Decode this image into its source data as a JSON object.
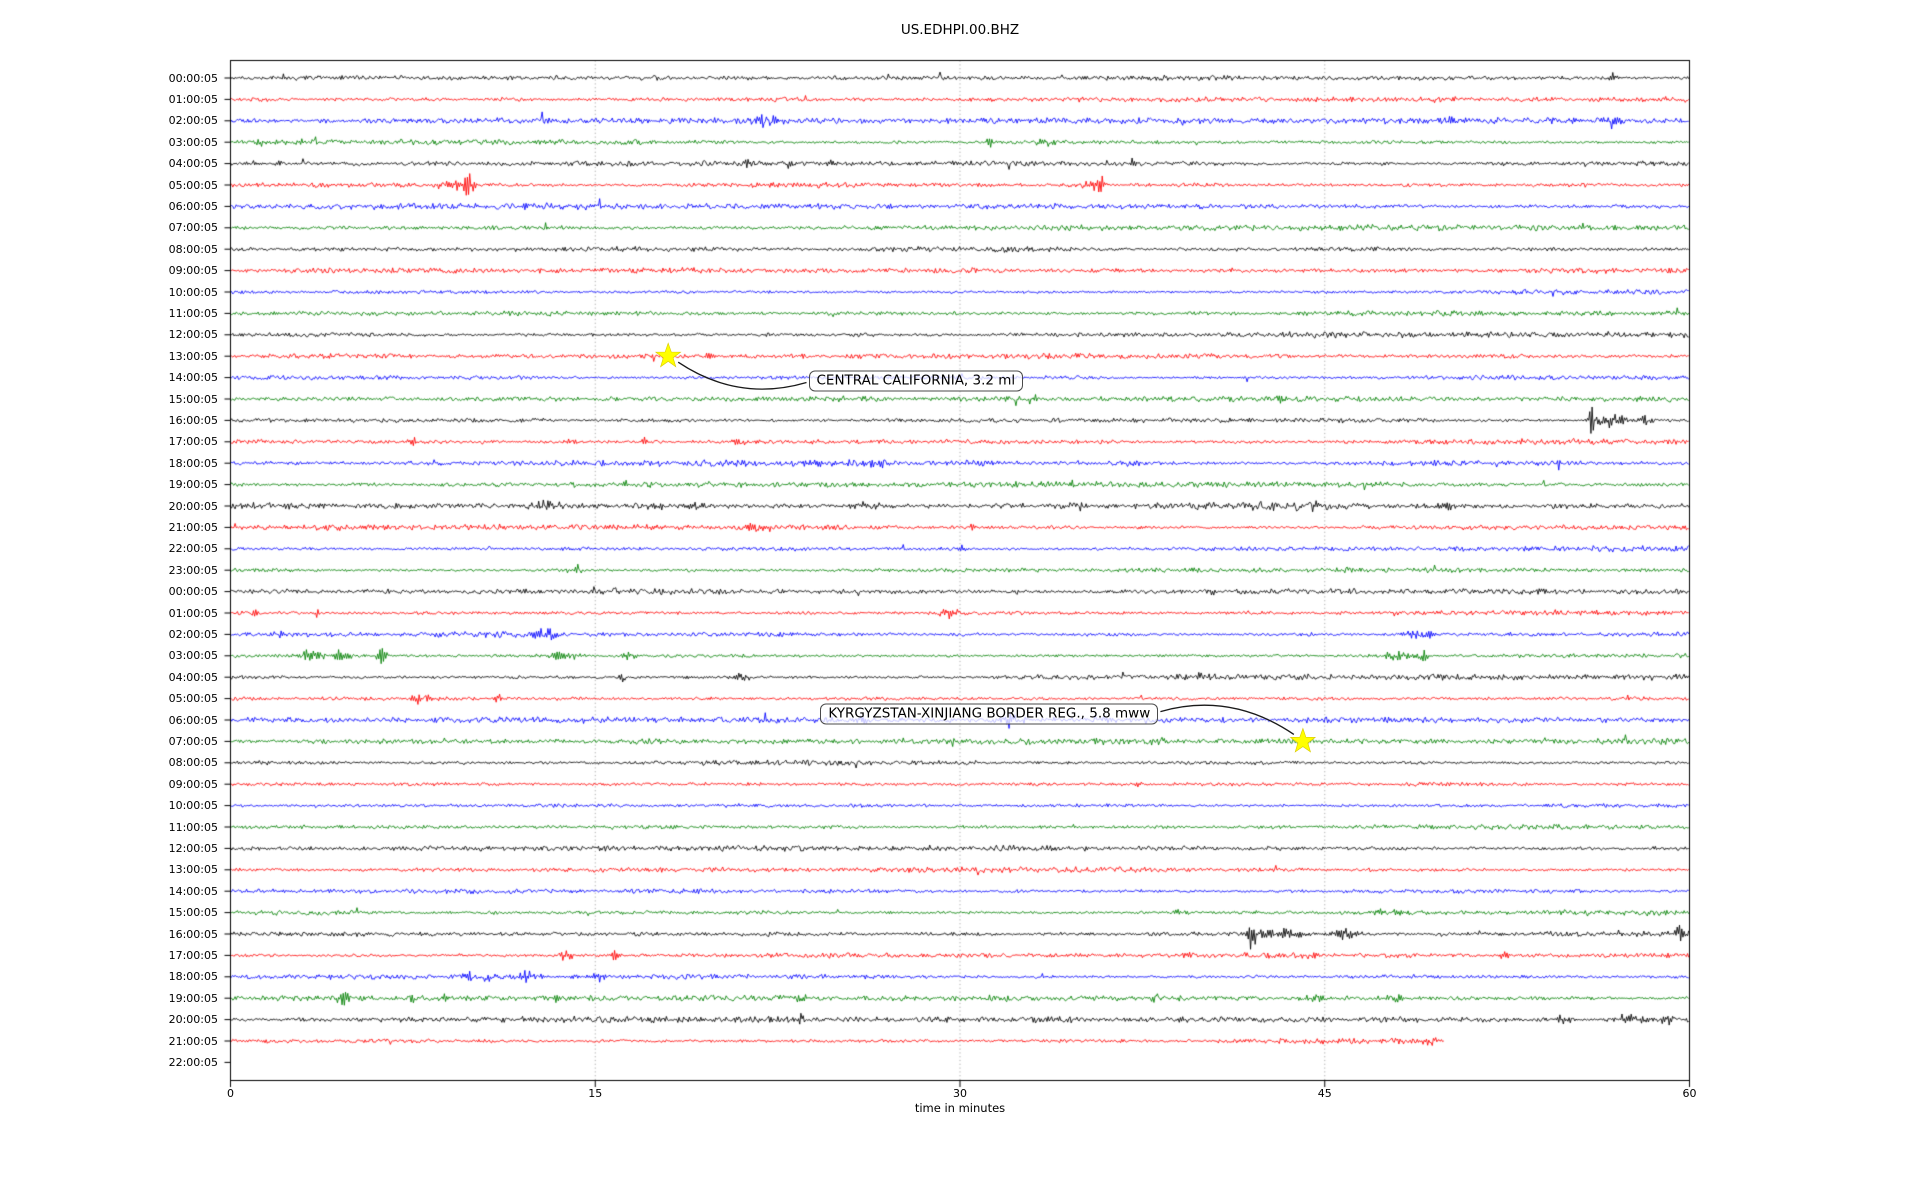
{
  "title": "US.EDHPI.00.BHZ",
  "xaxis": {
    "label": "time in minutes",
    "ticks": [
      "0",
      "15",
      "30",
      "45",
      "60"
    ],
    "tick_minutes": [
      0,
      15,
      30,
      45,
      60
    ],
    "range": [
      0,
      60
    ],
    "grid_minutes": [
      15,
      30,
      45
    ]
  },
  "palette": {
    "k": "#000000",
    "r": "#ff0000",
    "b": "#0000ff",
    "g": "#008000"
  },
  "annotations": [
    {
      "text": "CENTRAL CALIFORNIA, 3.2 ml",
      "star_min": 18.0,
      "star_row": 13,
      "box_min": 23.77,
      "box_row": 14.18,
      "side": "left"
    },
    {
      "text": "KYRGYZSTAN-XINJIANG BORDER REG., 5.8 mww",
      "star_min": 44.1,
      "star_row": 31,
      "box_min": 24.26,
      "box_row": 29.7,
      "side": "right"
    }
  ],
  "chart_data": {
    "type": "line",
    "subtype": "helicorder-dayplot-seismogram",
    "station_id": "US.EDHPI.00.BHZ",
    "xlabel": "time in minutes",
    "xlim": [
      0,
      60
    ],
    "x_ticks": [
      0,
      15,
      30,
      45,
      60
    ],
    "grid_minutes": [
      15,
      30,
      45
    ],
    "grid_style": "dotted-vertical",
    "trace_color_cycle": [
      "#000000",
      "#ff0000",
      "#0000ff",
      "#008000"
    ],
    "marked_events": [
      {
        "label": "CENTRAL CALIFORNIA, 3.2 ml",
        "row_time": "13:00:05",
        "minute": 18.0
      },
      {
        "label": "KYRGYZSTAN-XINJIANG BORDER REG., 5.8 mww",
        "row_time": "07:00:05",
        "minute": 44.1
      }
    ],
    "rows": [
      {
        "t": "00:00:05",
        "c": "k",
        "a": 2.2,
        "e": [
          [
            56.9,
            6,
            0.25
          ]
        ]
      },
      {
        "t": "01:00:05",
        "c": "r",
        "a": 2.3,
        "e": []
      },
      {
        "t": "02:00:05",
        "c": "b",
        "a": 2.3,
        "e": [
          [
            22,
            5,
            1.2
          ],
          [
            49.8,
            4,
            1.6
          ],
          [
            55.3,
            4,
            0.3
          ],
          [
            56.8,
            5,
            0.7
          ]
        ]
      },
      {
        "t": "03:00:05",
        "c": "g",
        "a": 2.2,
        "e": [
          [
            1.2,
            4,
            0.25
          ],
          [
            2.9,
            4,
            0.25
          ],
          [
            31.2,
            5,
            0.25
          ],
          [
            33.6,
            3,
            0.6
          ]
        ]
      },
      {
        "t": "04:00:05",
        "c": "k",
        "a": 2.2,
        "e": [
          [
            0.9,
            5,
            0.2
          ],
          [
            2.0,
            5,
            0.25
          ],
          [
            21.3,
            4,
            0.3
          ],
          [
            23.0,
            3,
            0.3
          ],
          [
            24.7,
            4,
            0.2
          ],
          [
            52.4,
            3,
            0.2
          ]
        ]
      },
      {
        "t": "05:00:05",
        "c": "r",
        "a": 2.3,
        "e": [
          [
            9.3,
            5,
            1.2
          ],
          [
            9.8,
            11,
            0.25
          ],
          [
            35.5,
            4,
            0.8
          ],
          [
            35.8,
            9,
            0.2
          ]
        ]
      },
      {
        "t": "06:00:05",
        "c": "b",
        "a": 2.4,
        "e": []
      },
      {
        "t": "07:00:05",
        "c": "g",
        "a": 2.4,
        "e": []
      },
      {
        "t": "08:00:05",
        "c": "k",
        "a": 2.5,
        "e": []
      },
      {
        "t": "09:00:05",
        "c": "r",
        "a": 2.2,
        "e": []
      },
      {
        "t": "10:00:05",
        "c": "b",
        "a": 2.2,
        "e": []
      },
      {
        "t": "11:00:05",
        "c": "g",
        "a": 2.2,
        "e": []
      },
      {
        "t": "12:00:05",
        "c": "k",
        "a": 2.3,
        "e": []
      },
      {
        "t": "13:00:05",
        "c": "r",
        "a": 2.2,
        "e": [
          [
            19.7,
            5,
            0.4
          ]
        ]
      },
      {
        "t": "14:00:05",
        "c": "b",
        "a": 2.2,
        "e": []
      },
      {
        "t": "15:00:05",
        "c": "g",
        "a": 2.2,
        "e": [
          [
            33,
            3,
            0.4
          ],
          [
            43.2,
            3,
            0.3
          ]
        ]
      },
      {
        "t": "16:00:05",
        "c": "k",
        "a": 2.4,
        "e": [
          [
            56.0,
            15,
            0.2
          ],
          [
            56.8,
            6,
            1.0
          ],
          [
            58.2,
            5,
            0.4
          ]
        ]
      },
      {
        "t": "17:00:05",
        "c": "r",
        "a": 2.3,
        "e": [
          [
            7.5,
            4,
            0.3
          ],
          [
            14,
            3,
            0.5
          ],
          [
            17.1,
            4,
            0.25
          ],
          [
            21,
            3,
            0.8
          ]
        ]
      },
      {
        "t": "18:00:05",
        "c": "b",
        "a": 2.3,
        "e": [
          [
            24,
            3,
            1.0
          ],
          [
            26.5,
            4,
            1.2
          ],
          [
            54.6,
            5,
            0.2
          ]
        ]
      },
      {
        "t": "19:00:05",
        "c": "g",
        "a": 2.3,
        "e": [
          [
            14.1,
            3,
            0.3
          ],
          [
            16.3,
            3,
            0.3
          ],
          [
            17.2,
            3,
            0.3
          ],
          [
            34.5,
            3,
            0.4
          ]
        ]
      },
      {
        "t": "20:00:05",
        "c": "k",
        "a": 3.6,
        "e": [
          [
            1.5,
            3,
            1
          ],
          [
            13,
            3,
            1
          ],
          [
            17.5,
            3,
            1
          ],
          [
            19,
            3,
            0.8
          ],
          [
            26,
            3,
            1
          ],
          [
            35,
            3,
            1
          ],
          [
            44,
            3,
            1.5
          ],
          [
            50,
            3,
            1
          ]
        ]
      },
      {
        "t": "21:00:05",
        "c": "r",
        "a": 2.3,
        "e": [
          [
            11.2,
            5,
            0.2
          ],
          [
            21.5,
            4,
            0.7
          ],
          [
            30.5,
            3,
            0.3
          ],
          [
            37.5,
            3,
            0.3
          ]
        ]
      },
      {
        "t": "22:00:05",
        "c": "b",
        "a": 2.2,
        "e": [
          [
            30.1,
            4,
            0.3
          ]
        ]
      },
      {
        "t": "23:00:05",
        "c": "g",
        "a": 2.2,
        "e": [
          [
            14.3,
            4,
            0.25
          ],
          [
            39.6,
            3,
            0.4
          ]
        ]
      },
      {
        "t": "00:00:05",
        "c": "k",
        "a": 2.2,
        "e": [
          [
            40.4,
            4,
            0.25
          ],
          [
            53.9,
            3,
            0.3
          ]
        ]
      },
      {
        "t": "01:00:05",
        "c": "r",
        "a": 2.3,
        "e": [
          [
            1.0,
            4,
            0.2
          ],
          [
            3.5,
            5,
            0.2
          ],
          [
            29.5,
            5,
            0.7
          ]
        ]
      },
      {
        "t": "02:00:05",
        "c": "b",
        "a": 2.3,
        "e": [
          [
            2.1,
            3,
            0.4
          ],
          [
            13,
            5,
            0.9
          ],
          [
            49,
            5,
            1.1
          ]
        ]
      },
      {
        "t": "03:00:05",
        "c": "g",
        "a": 2.3,
        "e": [
          [
            3.2,
            5,
            1.2
          ],
          [
            4.6,
            6,
            0.5
          ],
          [
            6.2,
            7,
            0.3
          ],
          [
            13.5,
            3,
            1.5
          ],
          [
            16.4,
            8,
            0.3
          ],
          [
            48,
            4,
            1.2
          ],
          [
            49.1,
            7,
            0.25
          ]
        ]
      },
      {
        "t": "04:00:05",
        "c": "k",
        "a": 2.3,
        "e": [
          [
            16.1,
            6,
            0.2
          ],
          [
            21,
            4,
            0.6
          ],
          [
            39.8,
            3,
            0.3
          ]
        ]
      },
      {
        "t": "05:00:05",
        "c": "r",
        "a": 2.3,
        "e": [
          [
            7.8,
            5,
            0.8
          ],
          [
            11,
            5,
            0.2
          ]
        ]
      },
      {
        "t": "06:00:05",
        "c": "b",
        "a": 2.3,
        "e": [
          [
            26,
            3,
            0.4
          ],
          [
            32.1,
            9,
            0.3
          ]
        ]
      },
      {
        "t": "07:00:05",
        "c": "g",
        "a": 2.3,
        "e": [
          [
            38,
            3,
            0.5
          ]
        ]
      },
      {
        "t": "08:00:05",
        "c": "k",
        "a": 2.2,
        "e": []
      },
      {
        "t": "09:00:05",
        "c": "r",
        "a": 2.2,
        "e": [
          [
            37.3,
            3,
            0.3
          ]
        ]
      },
      {
        "t": "10:00:05",
        "c": "b",
        "a": 2.2,
        "e": []
      },
      {
        "t": "11:00:05",
        "c": "g",
        "a": 2.2,
        "e": []
      },
      {
        "t": "12:00:05",
        "c": "k",
        "a": 2.3,
        "e": []
      },
      {
        "t": "13:00:05",
        "c": "r",
        "a": 2.2,
        "e": []
      },
      {
        "t": "14:00:05",
        "c": "b",
        "a": 2.2,
        "e": []
      },
      {
        "t": "15:00:05",
        "c": "g",
        "a": 2.3,
        "e": [
          [
            39,
            3,
            0.6
          ],
          [
            47.8,
            3,
            1.2
          ]
        ]
      },
      {
        "t": "16:00:05",
        "c": "k",
        "a": 2.4,
        "e": [
          [
            42.0,
            13,
            0.25
          ],
          [
            43.2,
            5,
            1.6
          ],
          [
            45.8,
            5,
            0.9
          ],
          [
            59.6,
            7,
            0.4
          ]
        ]
      },
      {
        "t": "17:00:05",
        "c": "r",
        "a": 2.3,
        "e": [
          [
            13.8,
            5,
            0.5
          ],
          [
            15.8,
            4,
            0.3
          ],
          [
            39.4,
            4,
            0.2
          ],
          [
            52.4,
            5,
            0.25
          ],
          [
            59.2,
            4,
            0.3
          ]
        ]
      },
      {
        "t": "18:00:05",
        "c": "b",
        "a": 2.3,
        "e": [
          [
            10.2,
            5,
            1.0
          ],
          [
            12.3,
            5,
            0.7
          ],
          [
            15.1,
            4,
            0.4
          ]
        ]
      },
      {
        "t": "19:00:05",
        "c": "g",
        "a": 2.4,
        "e": [
          [
            4.7,
            5,
            0.5
          ],
          [
            7.4,
            4,
            0.5
          ],
          [
            8.8,
            5,
            0.15
          ],
          [
            13.4,
            3,
            0.3
          ],
          [
            23.5,
            4,
            0.4
          ],
          [
            38.1,
            3,
            0.4
          ],
          [
            44.5,
            4,
            0.8
          ],
          [
            48,
            4,
            0.6
          ]
        ]
      },
      {
        "t": "20:00:05",
        "c": "k",
        "a": 2.4,
        "e": [
          [
            23.5,
            5,
            0.25
          ],
          [
            54.8,
            4,
            0.6
          ],
          [
            57.5,
            5,
            1.2
          ],
          [
            59,
            5,
            0.5
          ]
        ]
      },
      {
        "t": "21:00:05",
        "c": "r",
        "a": 2.3,
        "e": [
          [
            6.5,
            4,
            0.2
          ],
          [
            49.3,
            5,
            0.3
          ]
        ],
        "end": 49.9
      },
      {
        "t": "22:00:05",
        "c": "k",
        "a": 0,
        "e": [],
        "end": 0
      }
    ]
  }
}
